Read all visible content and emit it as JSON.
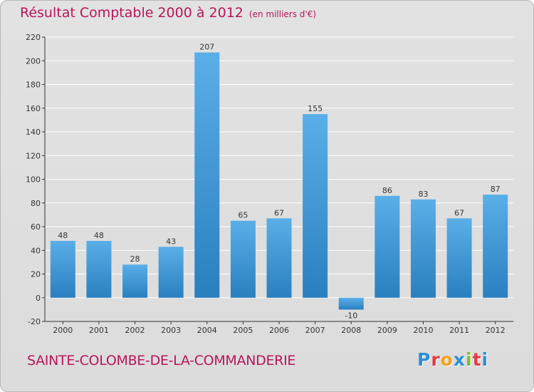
{
  "header": {
    "title": "Résultat Comptable 2000 à 2012",
    "unit": "(en milliers d'€)"
  },
  "footer": {
    "town": "SAINTE-COLOMBE-DE-LA-COMMANDERIE",
    "brand": "Proxiti"
  },
  "colors": {
    "accent": "#b5165a",
    "bar_light": "#5aafe8",
    "bar_dark": "#2a7fbf",
    "axis": "#333333",
    "grid": "#ffffff",
    "logo": [
      "#2e8fd6",
      "#e63946",
      "#f4a11a",
      "#2e8fd6",
      "#7bbf2a",
      "#e63946",
      "#2e8fd6"
    ]
  },
  "chart_data": {
    "type": "bar",
    "title": "Résultat Comptable 2000 à 2012",
    "subtitle": "(en milliers d'€)",
    "xlabel": "",
    "ylabel": "",
    "categories": [
      "2000",
      "2001",
      "2002",
      "2003",
      "2004",
      "2005",
      "2006",
      "2007",
      "2008",
      "2009",
      "2010",
      "2011",
      "2012"
    ],
    "values": [
      48,
      48,
      28,
      43,
      207,
      65,
      67,
      155,
      -10,
      86,
      83,
      67,
      87
    ],
    "data_labels": [
      "48",
      "48",
      "28",
      "43",
      "207",
      "65",
      "67",
      "155",
      "-10",
      "86",
      "83",
      "67",
      "87"
    ],
    "ylim": [
      -20,
      220
    ],
    "yticks": [
      -20,
      0,
      20,
      40,
      60,
      80,
      100,
      120,
      140,
      160,
      180,
      200,
      220
    ],
    "grid": true,
    "legend": "none"
  }
}
